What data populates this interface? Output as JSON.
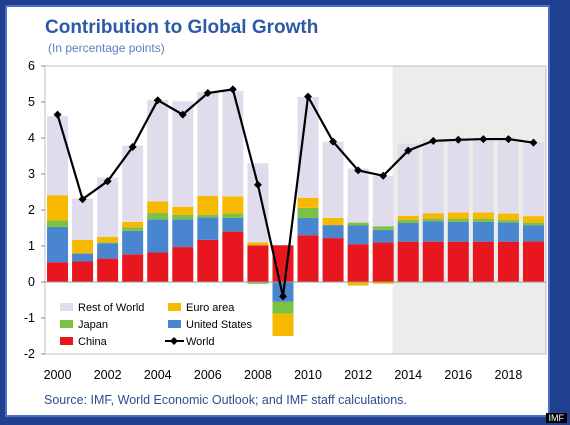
{
  "title": "Contribution to Global Growth",
  "subtitle": "(In percentage points)",
  "source": "Source: IMF, World Economic Outlook; and IMF staff calculations.",
  "watermark": "IMF",
  "colors": {
    "rest_of_world": "#e1dcec",
    "euro_area": "#f7b800",
    "japan": "#7cc242",
    "united_states": "#4a86d0",
    "china": "#e8171f",
    "world": "#000000",
    "forecast_shade": "#ececec",
    "title": "#2d5aa6"
  },
  "chart_data": {
    "type": "bar",
    "stacked": true,
    "years": [
      2000,
      2001,
      2002,
      2003,
      2004,
      2005,
      2006,
      2007,
      2008,
      2009,
      2010,
      2011,
      2012,
      2013,
      2014,
      2015,
      2016,
      2017,
      2018,
      2019
    ],
    "x_tick_labels": [
      "2000",
      "2002",
      "2004",
      "2006",
      "2008",
      "2010",
      "2012",
      "2014",
      "2016",
      "2018"
    ],
    "ylim": [
      -2,
      6
    ],
    "y_ticks": [
      -2,
      -1,
      0,
      1,
      2,
      3,
      4,
      5,
      6
    ],
    "forecast_start_year": 2014,
    "legend_position": "bottom-left inside plot",
    "series": [
      {
        "name": "China",
        "color_key": "china",
        "values": [
          0.55,
          0.57,
          0.65,
          0.77,
          0.82,
          0.97,
          1.17,
          1.4,
          1.02,
          1.02,
          1.3,
          1.22,
          1.05,
          1.1,
          1.12,
          1.12,
          1.12,
          1.12,
          1.12,
          1.13
        ]
      },
      {
        "name": "United States",
        "color_key": "united_states",
        "values": [
          0.98,
          0.22,
          0.42,
          0.65,
          0.92,
          0.77,
          0.62,
          0.38,
          0.0,
          -0.55,
          0.48,
          0.36,
          0.52,
          0.35,
          0.52,
          0.57,
          0.55,
          0.55,
          0.53,
          0.45
        ]
      },
      {
        "name": "Japan",
        "color_key": "japan",
        "values": [
          0.18,
          0.0,
          0.03,
          0.1,
          0.18,
          0.13,
          0.08,
          0.12,
          -0.05,
          -0.33,
          0.28,
          0.0,
          0.08,
          0.1,
          0.08,
          0.07,
          0.08,
          0.08,
          0.07,
          0.07
        ]
      },
      {
        "name": "Euro area",
        "color_key": "euro_area",
        "values": [
          0.7,
          0.38,
          0.15,
          0.15,
          0.32,
          0.22,
          0.52,
          0.48,
          0.08,
          -0.62,
          0.28,
          0.2,
          -0.1,
          -0.05,
          0.12,
          0.15,
          0.18,
          0.18,
          0.18,
          0.18
        ]
      },
      {
        "name": "Rest of World",
        "color_key": "rest_of_world",
        "values": [
          2.2,
          1.15,
          1.65,
          2.12,
          2.82,
          2.93,
          2.89,
          2.93,
          2.2,
          0.0,
          2.8,
          2.12,
          1.5,
          1.4,
          2.0,
          2.05,
          2.05,
          2.05,
          2.08,
          2.05
        ]
      }
    ],
    "line": {
      "name": "World",
      "color_key": "world",
      "values": [
        4.65,
        2.3,
        2.8,
        3.75,
        5.05,
        4.65,
        5.25,
        5.35,
        2.7,
        -0.4,
        5.15,
        3.9,
        3.1,
        2.95,
        3.65,
        3.92,
        3.95,
        3.97,
        3.97,
        3.87
      ]
    },
    "legend": [
      {
        "label": "Rest of World",
        "type": "box",
        "color_key": "rest_of_world"
      },
      {
        "label": "Euro area",
        "type": "box",
        "color_key": "euro_area"
      },
      {
        "label": "Japan",
        "type": "box",
        "color_key": "japan"
      },
      {
        "label": "United States",
        "type": "box",
        "color_key": "united_states"
      },
      {
        "label": "China",
        "type": "box",
        "color_key": "china"
      },
      {
        "label": "World",
        "type": "line",
        "color_key": "world"
      }
    ]
  }
}
